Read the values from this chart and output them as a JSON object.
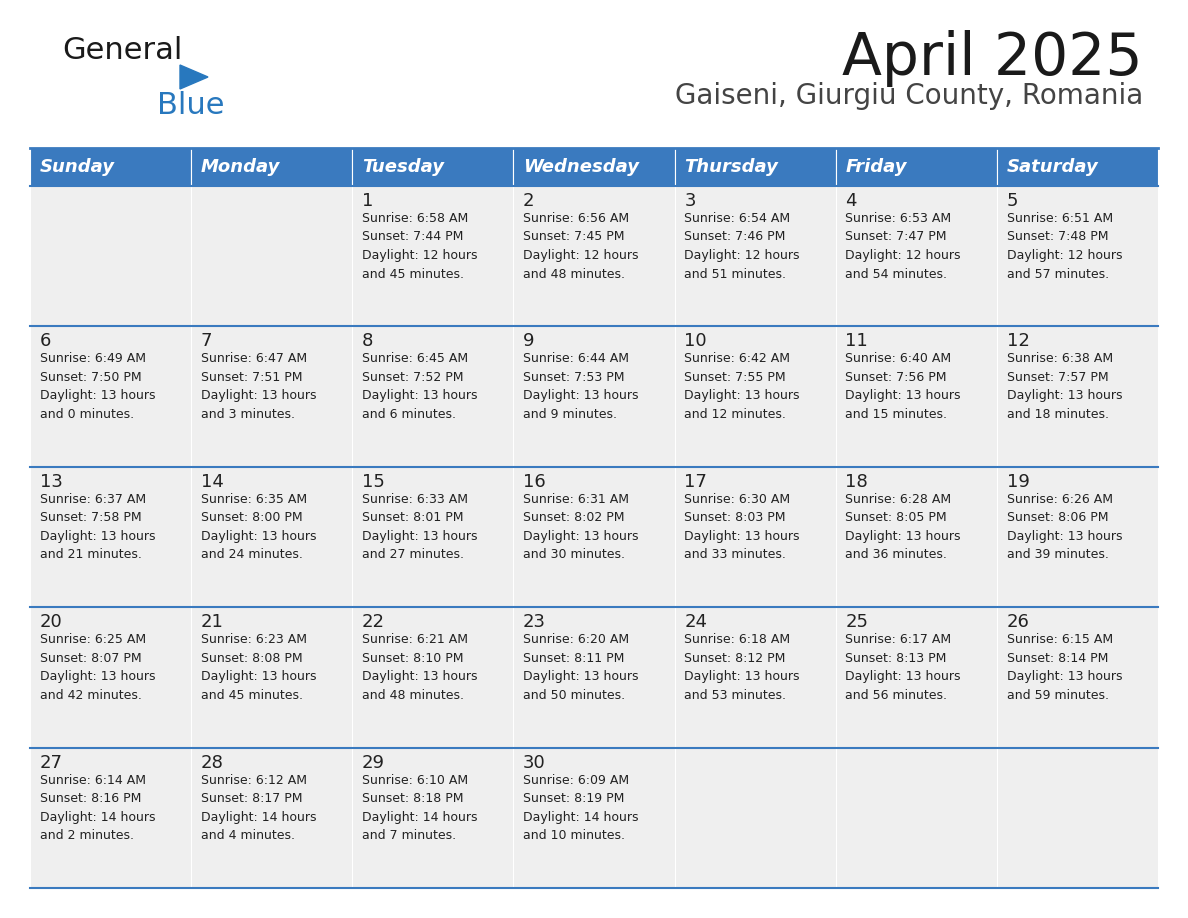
{
  "title": "April 2025",
  "subtitle": "Gaiseni, Giurgiu County, Romania",
  "header_color": "#3a7abf",
  "header_text_color": "#ffffff",
  "cell_bg_color": "#efefef",
  "cell_bg_empty": "#ffffff",
  "separator_color": "#3a7abf",
  "day_names": [
    "Sunday",
    "Monday",
    "Tuesday",
    "Wednesday",
    "Thursday",
    "Friday",
    "Saturday"
  ],
  "weeks": [
    [
      {
        "day": "",
        "info": ""
      },
      {
        "day": "",
        "info": ""
      },
      {
        "day": "1",
        "info": "Sunrise: 6:58 AM\nSunset: 7:44 PM\nDaylight: 12 hours\nand 45 minutes."
      },
      {
        "day": "2",
        "info": "Sunrise: 6:56 AM\nSunset: 7:45 PM\nDaylight: 12 hours\nand 48 minutes."
      },
      {
        "day": "3",
        "info": "Sunrise: 6:54 AM\nSunset: 7:46 PM\nDaylight: 12 hours\nand 51 minutes."
      },
      {
        "day": "4",
        "info": "Sunrise: 6:53 AM\nSunset: 7:47 PM\nDaylight: 12 hours\nand 54 minutes."
      },
      {
        "day": "5",
        "info": "Sunrise: 6:51 AM\nSunset: 7:48 PM\nDaylight: 12 hours\nand 57 minutes."
      }
    ],
    [
      {
        "day": "6",
        "info": "Sunrise: 6:49 AM\nSunset: 7:50 PM\nDaylight: 13 hours\nand 0 minutes."
      },
      {
        "day": "7",
        "info": "Sunrise: 6:47 AM\nSunset: 7:51 PM\nDaylight: 13 hours\nand 3 minutes."
      },
      {
        "day": "8",
        "info": "Sunrise: 6:45 AM\nSunset: 7:52 PM\nDaylight: 13 hours\nand 6 minutes."
      },
      {
        "day": "9",
        "info": "Sunrise: 6:44 AM\nSunset: 7:53 PM\nDaylight: 13 hours\nand 9 minutes."
      },
      {
        "day": "10",
        "info": "Sunrise: 6:42 AM\nSunset: 7:55 PM\nDaylight: 13 hours\nand 12 minutes."
      },
      {
        "day": "11",
        "info": "Sunrise: 6:40 AM\nSunset: 7:56 PM\nDaylight: 13 hours\nand 15 minutes."
      },
      {
        "day": "12",
        "info": "Sunrise: 6:38 AM\nSunset: 7:57 PM\nDaylight: 13 hours\nand 18 minutes."
      }
    ],
    [
      {
        "day": "13",
        "info": "Sunrise: 6:37 AM\nSunset: 7:58 PM\nDaylight: 13 hours\nand 21 minutes."
      },
      {
        "day": "14",
        "info": "Sunrise: 6:35 AM\nSunset: 8:00 PM\nDaylight: 13 hours\nand 24 minutes."
      },
      {
        "day": "15",
        "info": "Sunrise: 6:33 AM\nSunset: 8:01 PM\nDaylight: 13 hours\nand 27 minutes."
      },
      {
        "day": "16",
        "info": "Sunrise: 6:31 AM\nSunset: 8:02 PM\nDaylight: 13 hours\nand 30 minutes."
      },
      {
        "day": "17",
        "info": "Sunrise: 6:30 AM\nSunset: 8:03 PM\nDaylight: 13 hours\nand 33 minutes."
      },
      {
        "day": "18",
        "info": "Sunrise: 6:28 AM\nSunset: 8:05 PM\nDaylight: 13 hours\nand 36 minutes."
      },
      {
        "day": "19",
        "info": "Sunrise: 6:26 AM\nSunset: 8:06 PM\nDaylight: 13 hours\nand 39 minutes."
      }
    ],
    [
      {
        "day": "20",
        "info": "Sunrise: 6:25 AM\nSunset: 8:07 PM\nDaylight: 13 hours\nand 42 minutes."
      },
      {
        "day": "21",
        "info": "Sunrise: 6:23 AM\nSunset: 8:08 PM\nDaylight: 13 hours\nand 45 minutes."
      },
      {
        "day": "22",
        "info": "Sunrise: 6:21 AM\nSunset: 8:10 PM\nDaylight: 13 hours\nand 48 minutes."
      },
      {
        "day": "23",
        "info": "Sunrise: 6:20 AM\nSunset: 8:11 PM\nDaylight: 13 hours\nand 50 minutes."
      },
      {
        "day": "24",
        "info": "Sunrise: 6:18 AM\nSunset: 8:12 PM\nDaylight: 13 hours\nand 53 minutes."
      },
      {
        "day": "25",
        "info": "Sunrise: 6:17 AM\nSunset: 8:13 PM\nDaylight: 13 hours\nand 56 minutes."
      },
      {
        "day": "26",
        "info": "Sunrise: 6:15 AM\nSunset: 8:14 PM\nDaylight: 13 hours\nand 59 minutes."
      }
    ],
    [
      {
        "day": "27",
        "info": "Sunrise: 6:14 AM\nSunset: 8:16 PM\nDaylight: 14 hours\nand 2 minutes."
      },
      {
        "day": "28",
        "info": "Sunrise: 6:12 AM\nSunset: 8:17 PM\nDaylight: 14 hours\nand 4 minutes."
      },
      {
        "day": "29",
        "info": "Sunrise: 6:10 AM\nSunset: 8:18 PM\nDaylight: 14 hours\nand 7 minutes."
      },
      {
        "day": "30",
        "info": "Sunrise: 6:09 AM\nSunset: 8:19 PM\nDaylight: 14 hours\nand 10 minutes."
      },
      {
        "day": "",
        "info": ""
      },
      {
        "day": "",
        "info": ""
      },
      {
        "day": "",
        "info": ""
      }
    ]
  ],
  "logo_text1": "General",
  "logo_text2": "Blue",
  "logo_text1_color": "#1a1a1a",
  "logo_text2_color": "#2878be",
  "logo_triangle_color": "#2878be",
  "title_color": "#1a1a1a",
  "subtitle_color": "#444444",
  "title_fontsize": 42,
  "subtitle_fontsize": 20,
  "header_fontsize": 13,
  "day_num_fontsize": 13,
  "info_fontsize": 9
}
